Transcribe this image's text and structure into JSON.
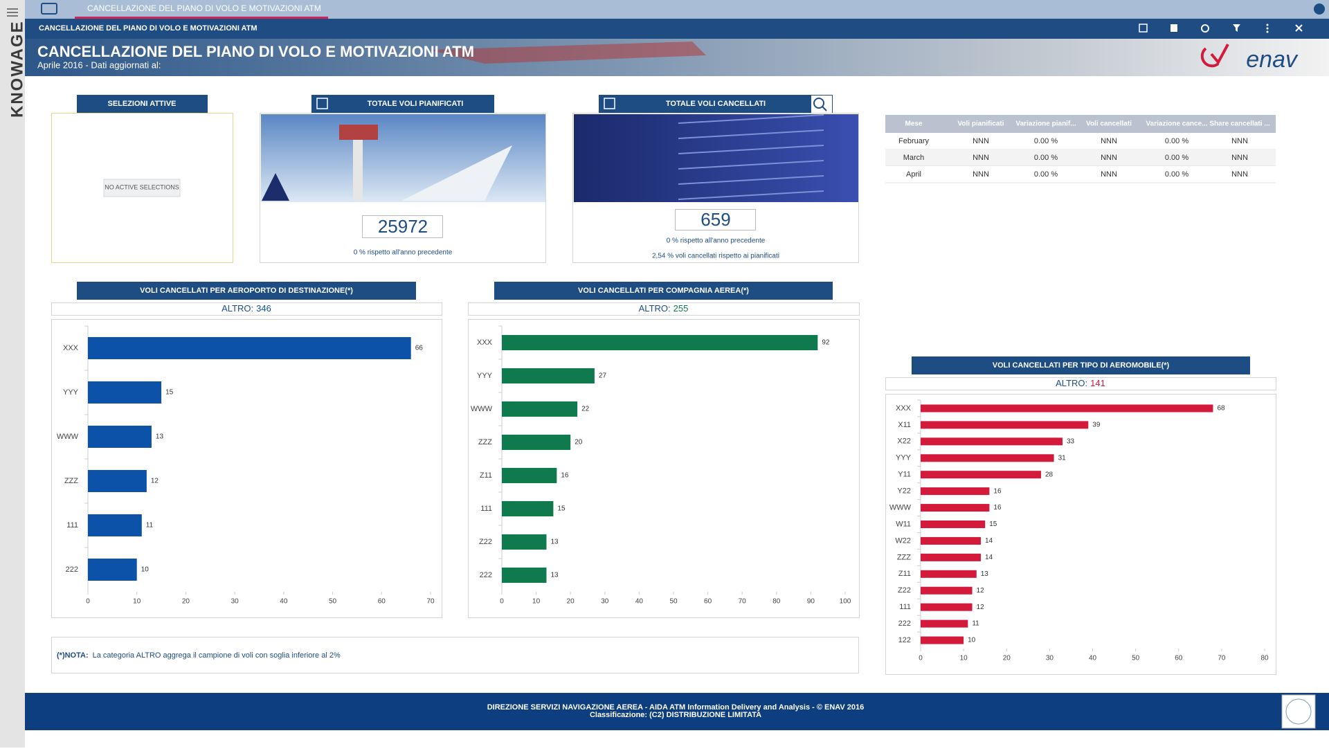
{
  "app": {
    "tab": "CANCELLAZIONE DEL PIANO DI VOLO E MOTIVAZIONI ATM",
    "brand": "KNOWAGE",
    "toolbar_title": "CANCELLAZIONE DEL PIANO DI VOLO E MOTIVAZIONI ATM"
  },
  "header": {
    "title": "CANCELLAZIONE DEL PIANO DI VOLO E MOTIVAZIONI ATM",
    "subtitle": "Aprile 2016 - Dati aggiornati al:",
    "logo": "enav"
  },
  "selections": {
    "title": "SELEZIONI ATTIVE",
    "empty": "NO ACTIVE SELECTIONS"
  },
  "kpis": [
    {
      "title": "TOTALE VOLI PIANIFICATI",
      "value": 25972,
      "notes": [
        "0 % rispetto all'anno precedente"
      ]
    },
    {
      "title": "TOTALE VOLI CANCELLATI",
      "value": 659,
      "notes": [
        "0 % rispetto all'anno precedente",
        "2,54 % voli cancellati rispetto ai pianificati"
      ]
    }
  ],
  "table": {
    "columns": [
      "Mese",
      "Voli pianificati",
      "Variazione pianif...",
      "Voli cancellati",
      "Variazione cance...",
      "Share cancellati ..."
    ],
    "rows": [
      [
        "February",
        "NNN",
        "0.00 %",
        "NNN",
        "0.00 %",
        "NNN"
      ],
      [
        "March",
        "NNN",
        "0.00 %",
        "NNN",
        "0.00 %",
        "NNN"
      ],
      [
        "April",
        "NNN",
        "0.00 %",
        "NNN",
        "0.00 %",
        "NNN"
      ]
    ]
  },
  "chart_data": [
    {
      "type": "bar",
      "orientation": "horizontal",
      "title": "VOLI CANCELLATI PER AEROPORTO DI DESTINAZIONE(*)",
      "altro_label": "ALTRO:",
      "altro_value": 346,
      "categories": [
        "XXX",
        "YYY",
        "WWW",
        "ZZZ",
        "111",
        "222"
      ],
      "values": [
        66,
        15,
        13,
        12,
        11,
        10
      ],
      "color": "#0b52a8",
      "xlim": [
        0,
        70
      ],
      "xticks": [
        0,
        10,
        20,
        30,
        40,
        50,
        60,
        70
      ],
      "grid": false
    },
    {
      "type": "bar",
      "orientation": "horizontal",
      "title": "VOLI CANCELLATI PER COMPAGNIA AEREA(*)",
      "altro_label": "ALTRO:",
      "altro_value": 255,
      "categories": [
        "XXX",
        "YYY",
        "WWW",
        "ZZZ",
        "Z11",
        "111",
        "Z22",
        "222"
      ],
      "values": [
        92,
        27,
        22,
        20,
        16,
        15,
        13,
        13
      ],
      "color": "#0f7a4d",
      "xlim": [
        0,
        100
      ],
      "xticks": [
        0,
        10,
        20,
        30,
        40,
        50,
        60,
        70,
        80,
        90,
        100
      ],
      "grid": false
    },
    {
      "type": "bar",
      "orientation": "horizontal",
      "title": "VOLI CANCELLATI PER TIPO DI AEROMOBILE(*)",
      "altro_label": "ALTRO:",
      "altro_value": 141,
      "categories": [
        "XXX",
        "X11",
        "X22",
        "YYY",
        "Y11",
        "Y22",
        "WWW",
        "W11",
        "W22",
        "ZZZ",
        "Z11",
        "Z22",
        "111",
        "222",
        "122"
      ],
      "values": [
        68,
        39,
        33,
        31,
        28,
        16,
        16,
        15,
        14,
        14,
        13,
        12,
        12,
        11,
        10
      ],
      "color": "#d31a3b",
      "xlim": [
        0,
        80
      ],
      "xticks": [
        0,
        10,
        20,
        30,
        40,
        50,
        60,
        70,
        80
      ],
      "grid": false
    }
  ],
  "note": {
    "label": "(*)NOTA:",
    "text": "La categoria ALTRO aggrega il campione di voli con soglia inferiore al 2%"
  },
  "footer": {
    "lines": [
      "DIREZIONE SERVIZI NAVIGAZIONE AEREA - AIDA ATM Information Delivery and Analysis - © ENAV 2016",
      "Classificazione: (C2) DISTRIBUZIONE LIMITATA"
    ]
  }
}
